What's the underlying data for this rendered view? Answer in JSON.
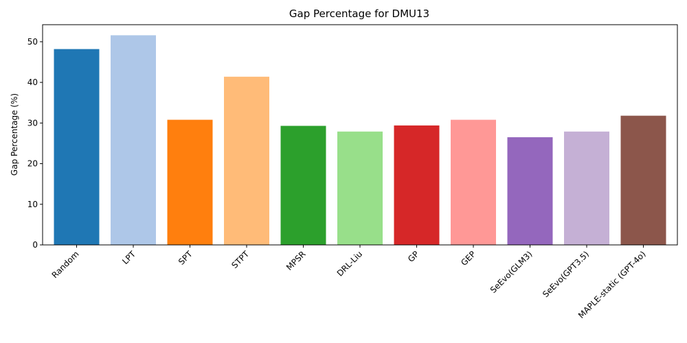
{
  "chart_data": {
    "type": "bar",
    "title": "Gap Percentage for DMU13",
    "xlabel": "",
    "ylabel": "Gap Percentage (%)",
    "categories": [
      "Random",
      "LPT",
      "SPT",
      "STPT",
      "MPSR",
      "DRL-Liu",
      "GP",
      "GEP",
      "SeEvo(GLM3)",
      "SeEvo(GPT3.5)",
      "MAPLE-static (GPT-4o)"
    ],
    "values": [
      48.2,
      51.6,
      30.8,
      41.4,
      29.3,
      27.9,
      29.4,
      30.8,
      26.5,
      27.9,
      31.8
    ],
    "colors": [
      "#1f77b4",
      "#aec7e8",
      "#ff7f0e",
      "#ffbb78",
      "#2ca02c",
      "#98df8a",
      "#d62728",
      "#ff9896",
      "#9467bd",
      "#c5b0d5",
      "#8c564b"
    ],
    "ylim": [
      0,
      54.2
    ],
    "yticks": [
      0,
      10,
      20,
      30,
      40,
      50
    ],
    "grid": false,
    "legend": "none"
  }
}
